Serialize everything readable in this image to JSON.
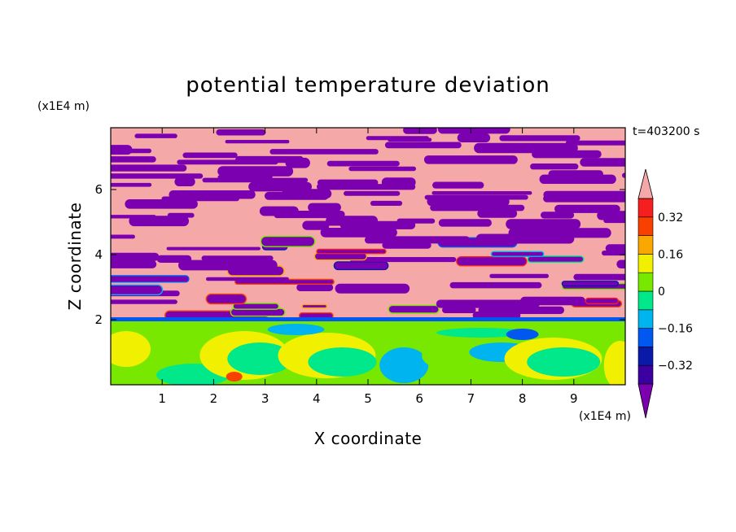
{
  "chart_data": {
    "type": "heatmap",
    "title": "potential temperature deviation",
    "xlabel": "X coordinate",
    "ylabel": "Z coordinate",
    "x_unit_label": "(x1E4 m)",
    "y_unit_label": "(x1E4 m)",
    "time_label": "t=403200 s",
    "xlim": [
      0,
      10
    ],
    "ylim": [
      0,
      7.9
    ],
    "x_ticks": [
      1,
      2,
      3,
      4,
      5,
      6,
      7,
      8,
      9
    ],
    "y_ticks": [
      2,
      4,
      6
    ],
    "colorbar": {
      "levels": [
        -0.4,
        -0.32,
        -0.24,
        -0.16,
        -0.08,
        0,
        0.08,
        0.16,
        0.24,
        0.32,
        0.4
      ],
      "tick_labels": [
        "0.32",
        "0.16",
        "0",
        "−0.16",
        "−0.32"
      ],
      "tick_values": [
        0.32,
        0.16,
        0,
        -0.16,
        -0.32
      ],
      "colors": [
        "#7b00b0",
        "#3c00a0",
        "#0a1aa8",
        "#0058f0",
        "#00b4f0",
        "#00e88a",
        "#78e800",
        "#f0f000",
        "#f8a800",
        "#f84000",
        "#f51f1f",
        "#f4a8a8"
      ],
      "extend": "both"
    },
    "regions": {
      "upper_band": {
        "z_range": [
          2.0,
          7.9
        ],
        "dominant_values": [
          "> 0.40",
          "< -0.40"
        ]
      },
      "lower_band": {
        "z_range": [
          0,
          2.0
        ],
        "dominant_values": [
          "-0.08 to 0.16"
        ]
      }
    }
  }
}
